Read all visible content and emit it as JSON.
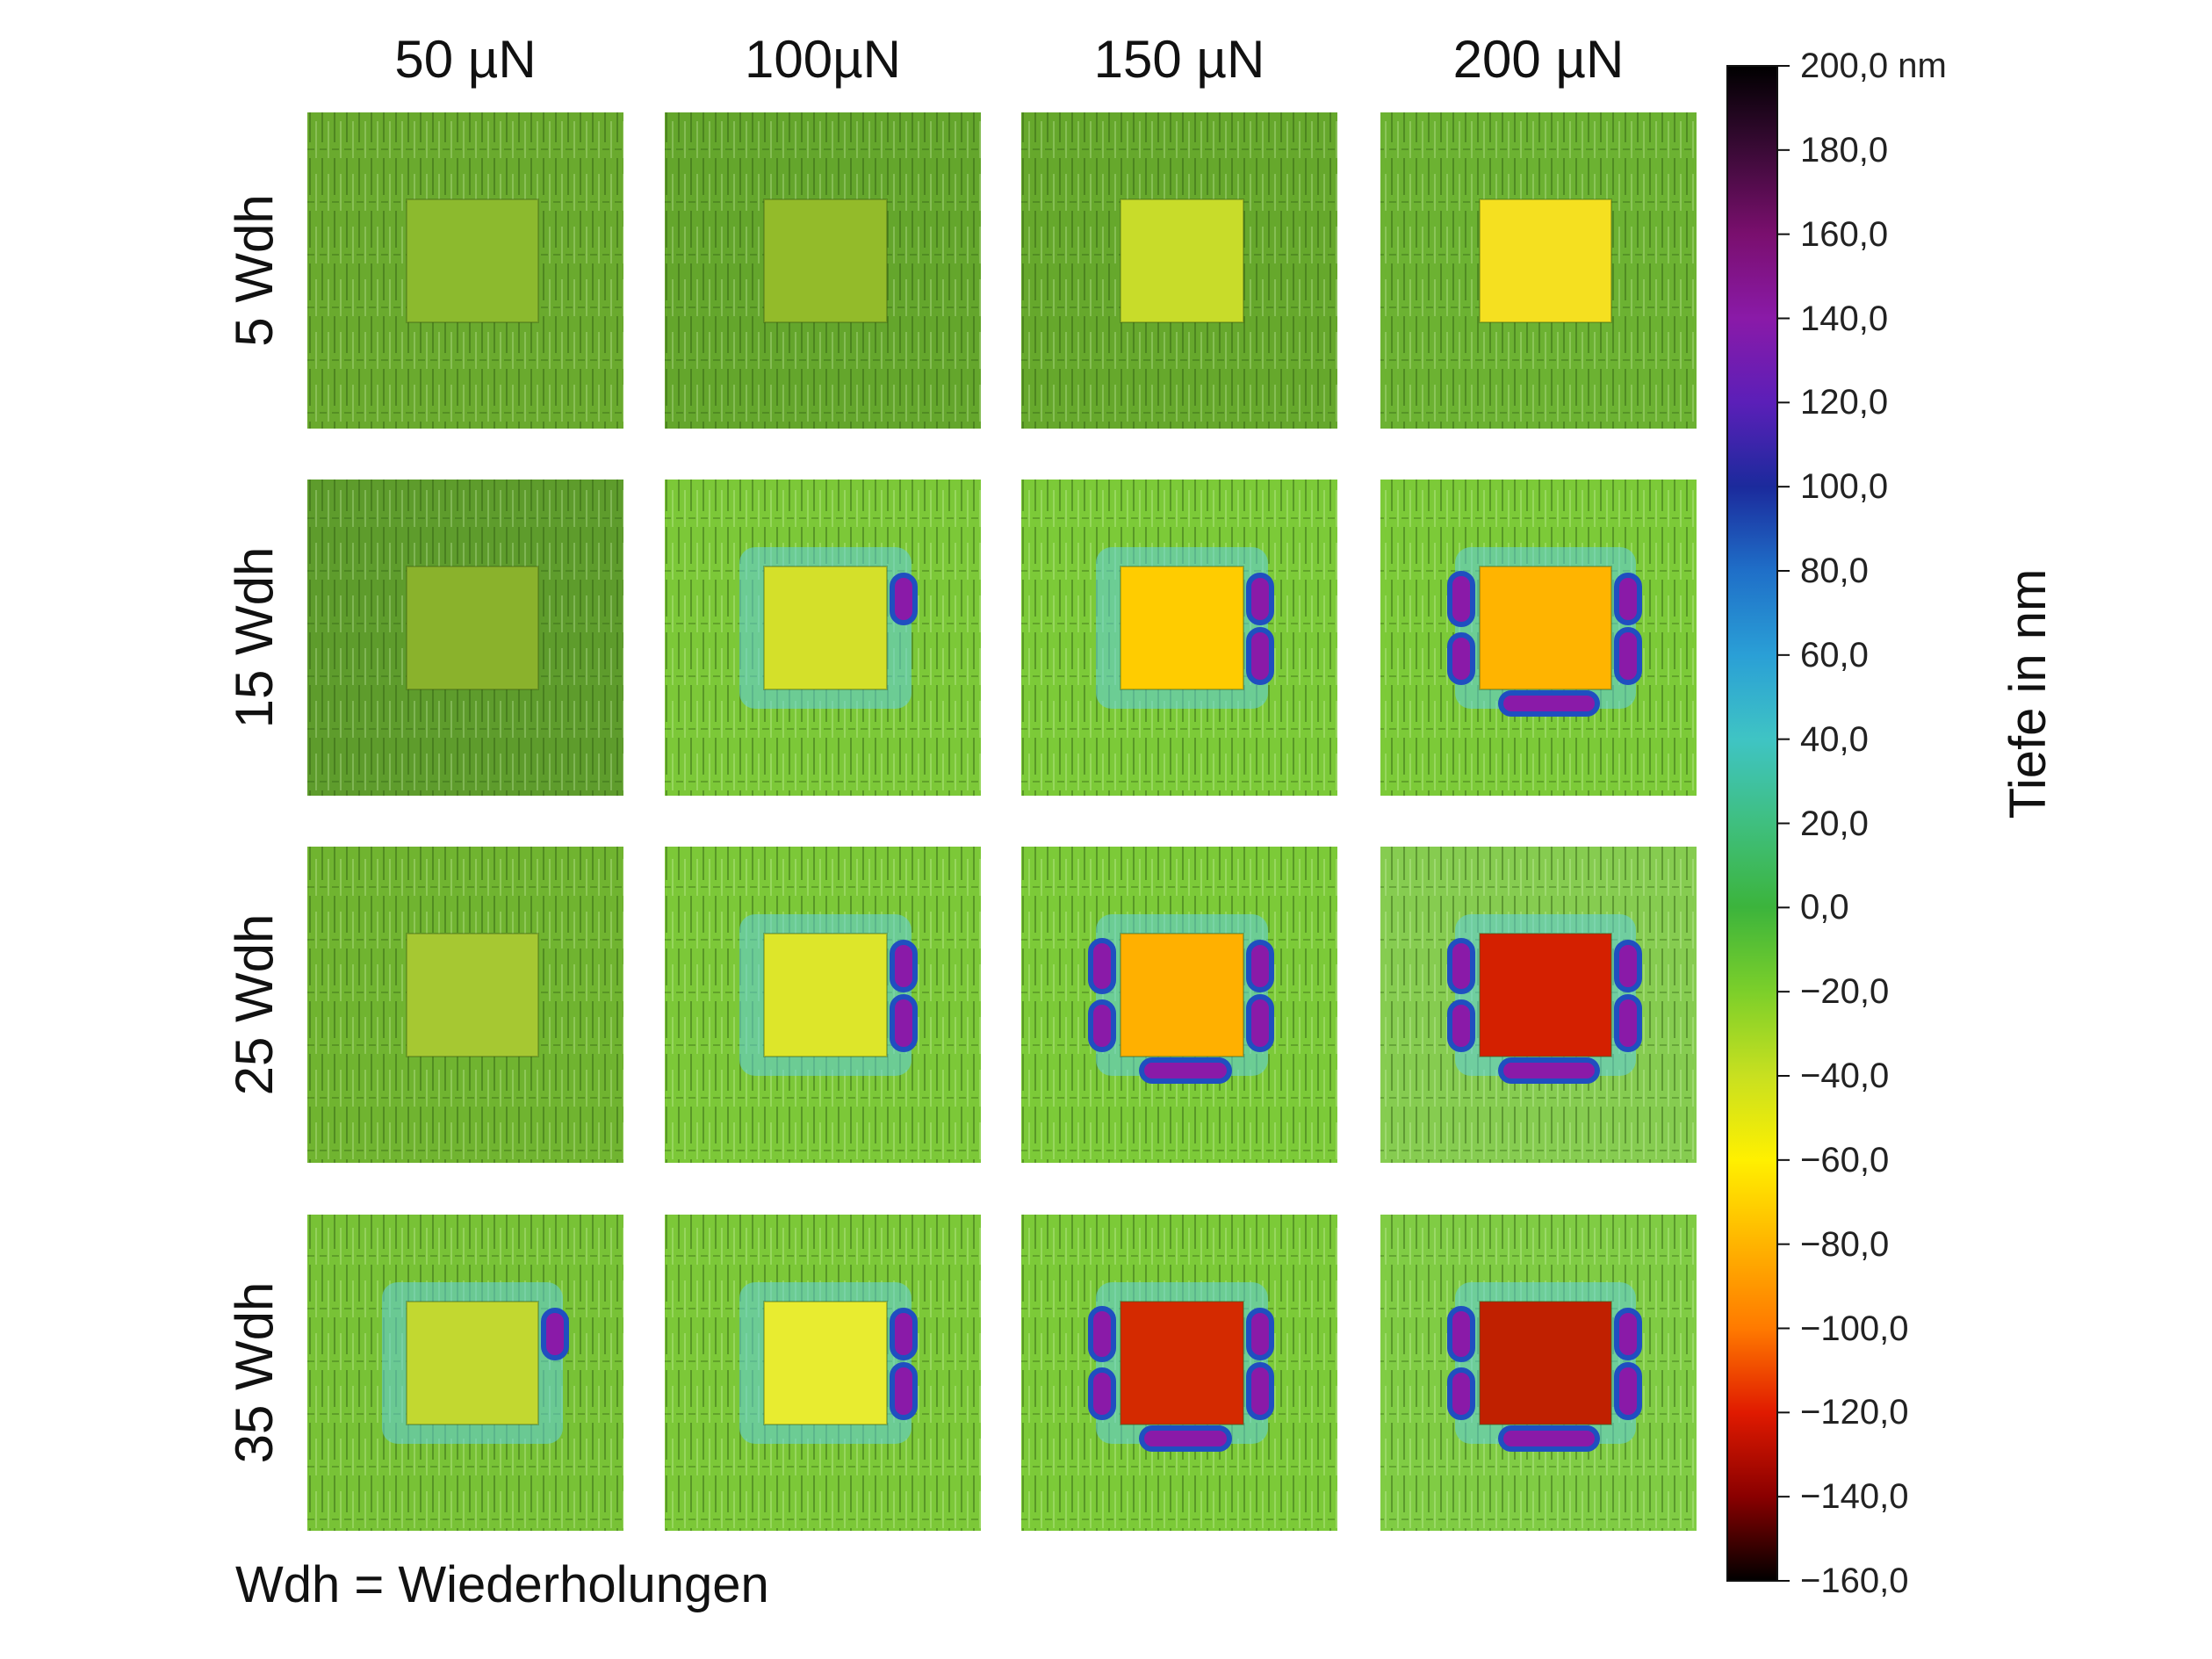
{
  "chart_data": {
    "type": "heatmap",
    "columns": [
      "50 µN",
      "100µN",
      "150 µN",
      "200 µN"
    ],
    "rows": [
      "5 Wdh",
      "15 Wdh",
      "25 Wdh",
      "35 Wdh"
    ],
    "colorbar": {
      "label": "Tiefe in nm",
      "range": [
        -160,
        200
      ],
      "ticks": [
        "200,0 nm",
        "180,0",
        "160,0",
        "140,0",
        "120,0",
        "100,0",
        "80,0",
        "60,0",
        "40,0",
        "20,0",
        "0,0",
        "−20,0",
        "−40,0",
        "−60,0",
        "−80,0",
        "−100,0",
        "−120,0",
        "−140,0",
        "−160,0"
      ],
      "colors": [
        "#000000",
        "#3a0a36",
        "#7a0f6e",
        "#8a1aa8",
        "#5b1fb8",
        "#1b2a9c",
        "#1f6fc8",
        "#2a9fd6",
        "#3fc4c4",
        "#3fbf7f",
        "#3cb43c",
        "#7ccf2a",
        "#c8e020",
        "#fff000",
        "#ffb400",
        "#ff7a00",
        "#e01a00",
        "#8a0000",
        "#000000"
      ]
    },
    "cells": [
      [
        {
          "background": "#6aaa2e",
          "square_color": "#8cba2e",
          "side_pits": 0
        },
        {
          "background": "#64a62c",
          "square_color": "#93bb2a",
          "side_pits": 0
        },
        {
          "background": "#66a82c",
          "square_color": "#c8dc2a",
          "side_pits": 0
        },
        {
          "background": "#6cb232",
          "square_color": "#f5e020",
          "side_pits": 0
        }
      ],
      [
        {
          "background": "#5e9c2c",
          "square_color": "#8ab22c",
          "side_pits": 0
        },
        {
          "background": "#7cc838",
          "square_color": "#d4e02a",
          "side_pits": 1
        },
        {
          "background": "#7cca38",
          "square_color": "#ffcc00",
          "side_pits": 2
        },
        {
          "background": "#7cca38",
          "square_color": "#ffb400",
          "side_pits": 3
        }
      ],
      [
        {
          "background": "#70b430",
          "square_color": "#a6c832",
          "side_pits": 0
        },
        {
          "background": "#7cc838",
          "square_color": "#dde62a",
          "side_pits": 2
        },
        {
          "background": "#7cca38",
          "square_color": "#ffb000",
          "side_pits": 3
        },
        {
          "background": "#86cc50",
          "square_color": "#d42000",
          "side_pits": 3
        }
      ],
      [
        {
          "background": "#78c236",
          "square_color": "#c2d830",
          "side_pits": 1
        },
        {
          "background": "#7cc838",
          "square_color": "#e8ec30",
          "side_pits": 2
        },
        {
          "background": "#7cca38",
          "square_color": "#d42a00",
          "side_pits": 3
        },
        {
          "background": "#80cc44",
          "square_color": "#c02000",
          "side_pits": 3
        }
      ]
    ],
    "footnote": "Wdh = Wiederholungen"
  },
  "colors": {
    "pit_purple": "#8a1aa8",
    "pit_blue": "#1f4fc0",
    "halo_cyan": "#5ed0e0"
  }
}
